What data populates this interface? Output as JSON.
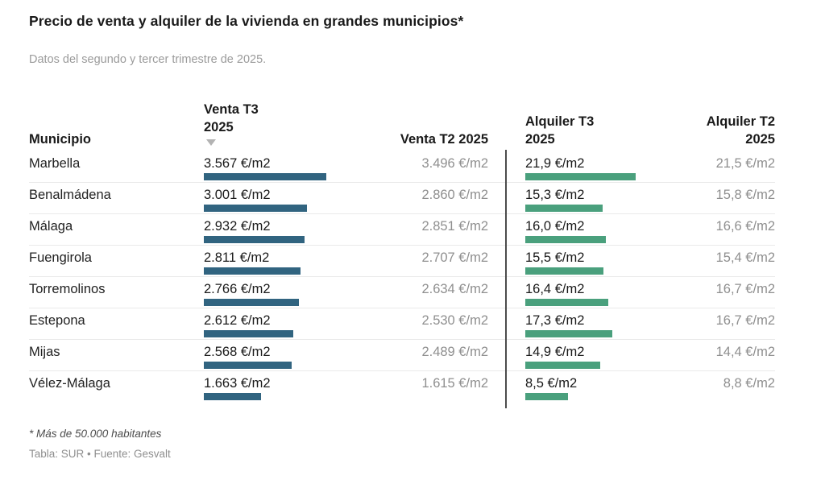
{
  "header": {
    "title": "Precio de venta y alquiler de la vivienda en grandes municipios*",
    "subtitle": "Datos del segundo y tercer trimestre de 2025."
  },
  "table": {
    "columns": [
      {
        "key": "municipio",
        "label": "Municipio",
        "sorted": false
      },
      {
        "key": "venta_t3",
        "label": "Venta T3 2025",
        "sorted": true,
        "sort_indicator": "▼"
      },
      {
        "key": "venta_t2",
        "label": "Venta T2 2025",
        "sorted": false
      },
      {
        "key": "alquiler_t3",
        "label": "Alquiler T3 2025",
        "sorted": false
      },
      {
        "key": "alquiler_t2",
        "label": "Alquiler T2 2025",
        "sorted": false
      }
    ],
    "rows": [
      {
        "municipio": "Marbella",
        "venta_t3": "3.567 €/m2",
        "venta_t2": "3.496 €/m2",
        "alquiler_t3": "21,9 €/m2",
        "alquiler_t2": "21,5 €/m2"
      },
      {
        "municipio": "Benalmádena",
        "venta_t3": "3.001 €/m2",
        "venta_t2": "2.860 €/m2",
        "alquiler_t3": "15,3 €/m2",
        "alquiler_t2": "15,8 €/m2"
      },
      {
        "municipio": "Málaga",
        "venta_t3": "2.932 €/m2",
        "venta_t2": "2.851 €/m2",
        "alquiler_t3": "16,0 €/m2",
        "alquiler_t2": "16,6 €/m2"
      },
      {
        "municipio": "Fuengirola",
        "venta_t3": "2.811 €/m2",
        "venta_t2": "2.707 €/m2",
        "alquiler_t3": "15,5 €/m2",
        "alquiler_t2": "15,4 €/m2"
      },
      {
        "municipio": "Torremolinos",
        "venta_t3": "2.766 €/m2",
        "venta_t2": "2.634 €/m2",
        "alquiler_t3": "16,4 €/m2",
        "alquiler_t2": "16,7 €/m2"
      },
      {
        "municipio": "Estepona",
        "venta_t3": "2.612 €/m2",
        "venta_t2": "2.530 €/m2",
        "alquiler_t3": "17,3 €/m2",
        "alquiler_t2": "16,7 €/m2"
      },
      {
        "municipio": "Mijas",
        "venta_t3": "2.568 €/m2",
        "venta_t2": "2.489 €/m2",
        "alquiler_t3": "14,9 €/m2",
        "alquiler_t2": "14,4 €/m2"
      },
      {
        "municipio": "Vélez-Málaga",
        "venta_t3": "1.663 €/m2",
        "venta_t2": "1.615 €/m2",
        "alquiler_t3": "8,5 €/m2",
        "alquiler_t2": "8,8 €/m2"
      }
    ]
  },
  "chart_data": {
    "type": "table",
    "title": "Precio de venta y alquiler de la vivienda en grandes municipios*",
    "subtitle": "Datos del segundo y tercer trimestre de 2025.",
    "columns": [
      "Municipio",
      "Venta T3 2025",
      "Venta T2 2025",
      "Alquiler T3 2025",
      "Alquiler T2 2025"
    ],
    "unit": "€/m2",
    "bar_columns": [
      "Venta T3 2025",
      "Alquiler T3 2025"
    ],
    "sort": {
      "column": "Venta T3 2025",
      "direction": "desc"
    },
    "rows": [
      {
        "municipio": "Marbella",
        "venta_t3": 3567,
        "venta_t2": 3496,
        "alquiler_t3": 21.9,
        "alquiler_t2": 21.5
      },
      {
        "municipio": "Benalmádena",
        "venta_t3": 3001,
        "venta_t2": 2860,
        "alquiler_t3": 15.3,
        "alquiler_t2": 15.8
      },
      {
        "municipio": "Málaga",
        "venta_t3": 2932,
        "venta_t2": 2851,
        "alquiler_t3": 16.0,
        "alquiler_t2": 16.6
      },
      {
        "municipio": "Fuengirola",
        "venta_t3": 2811,
        "venta_t2": 2707,
        "alquiler_t3": 15.5,
        "alquiler_t2": 15.4
      },
      {
        "municipio": "Torremolinos",
        "venta_t3": 2766,
        "venta_t2": 2634,
        "alquiler_t3": 16.4,
        "alquiler_t2": 16.7
      },
      {
        "municipio": "Estepona",
        "venta_t3": 2612,
        "venta_t2": 2530,
        "alquiler_t3": 17.3,
        "alquiler_t2": 16.7
      },
      {
        "municipio": "Mijas",
        "venta_t3": 2568,
        "venta_t2": 2489,
        "alquiler_t3": 14.9,
        "alquiler_t2": 14.4
      },
      {
        "municipio": "Vélez-Málaga",
        "venta_t3": 1663,
        "venta_t2": 1615,
        "alquiler_t3": 8.5,
        "alquiler_t2": 8.8
      }
    ]
  },
  "footer": {
    "note": "* Más de 50.000 habitantes",
    "credit": "Tabla: SUR • Fuente: Gesvalt"
  },
  "colors": {
    "venta_bar": "#316480",
    "alquiler_bar": "#4aa07d",
    "divider": "#4c4c4c",
    "row_border": "#e9e9e9",
    "muted_text": "#8f8f8f"
  }
}
